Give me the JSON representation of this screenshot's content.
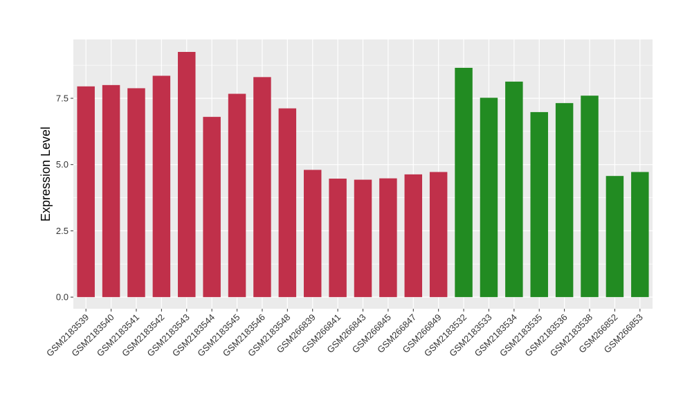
{
  "chart_data": {
    "type": "bar",
    "ylabel": "Expression Level",
    "xlabel": "",
    "ylim": [
      0,
      9.5
    ],
    "yticks": [
      "0.0",
      "2.5",
      "5.0",
      "7.5"
    ],
    "grid": true,
    "categories": [
      "GSM2183539",
      "GSM2183540",
      "GSM2183541",
      "GSM2183542",
      "GSM2183543",
      "GSM2183544",
      "GSM2183545",
      "GSM2183546",
      "GSM2183548",
      "GSM266839",
      "GSM266841",
      "GSM266843",
      "GSM266845",
      "GSM266847",
      "GSM266849",
      "GSM2183532",
      "GSM2183533",
      "GSM2183534",
      "GSM2183535",
      "GSM2183536",
      "GSM2183538",
      "GSM266852",
      "GSM266853"
    ],
    "values": [
      7.95,
      8.0,
      7.88,
      8.35,
      9.25,
      6.8,
      7.67,
      8.3,
      7.12,
      4.8,
      4.47,
      4.43,
      4.48,
      4.63,
      4.72,
      8.65,
      7.52,
      8.13,
      6.98,
      7.32,
      7.6,
      4.57,
      4.72
    ],
    "bar_colors": [
      "#c0304a",
      "#c0304a",
      "#c0304a",
      "#c0304a",
      "#c0304a",
      "#c0304a",
      "#c0304a",
      "#c0304a",
      "#c0304a",
      "#c0304a",
      "#c0304a",
      "#c0304a",
      "#c0304a",
      "#c0304a",
      "#c0304a",
      "#228b22",
      "#228b22",
      "#228b22",
      "#228b22",
      "#228b22",
      "#228b22",
      "#228b22",
      "#228b22"
    ],
    "panel_background": "#ebebeb",
    "grid_color": "#ffffff"
  }
}
